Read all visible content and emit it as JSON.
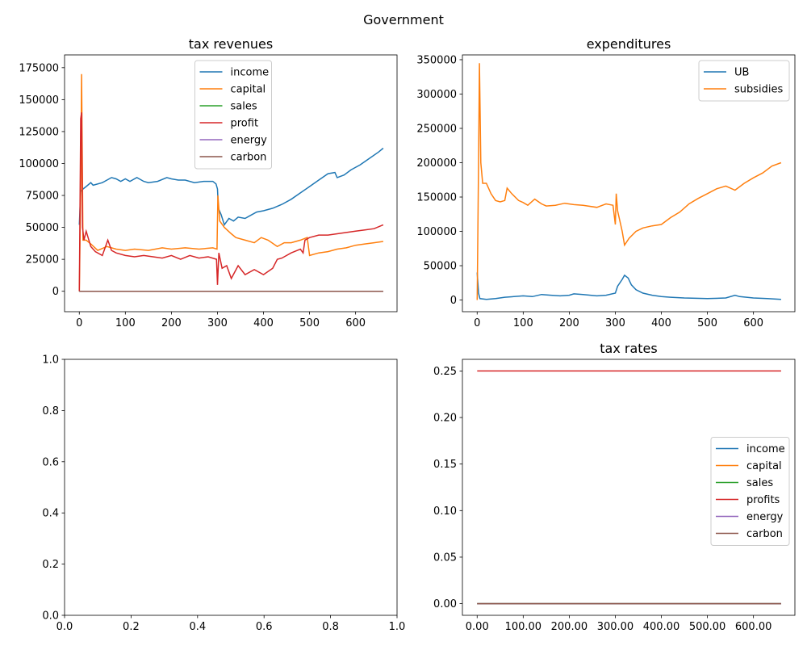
{
  "figure": {
    "title": "Government"
  },
  "chart_data": [
    {
      "id": "tax_revenues",
      "type": "line",
      "title": "tax revenues",
      "xlim": [
        -32,
        690
      ],
      "ylim": [
        -16000,
        185000
      ],
      "xticks": [
        0,
        100,
        200,
        300,
        400,
        500,
        600
      ],
      "yticks": [
        0,
        25000,
        50000,
        75000,
        100000,
        125000,
        150000,
        175000
      ],
      "legend": "top-center",
      "series": [
        {
          "name": "income",
          "color": "#1f77b4",
          "points": [
            [
              0,
              52000
            ],
            [
              3,
              78000
            ],
            [
              8,
              80000
            ],
            [
              15,
              82000
            ],
            [
              25,
              85000
            ],
            [
              30,
              83000
            ],
            [
              50,
              85000
            ],
            [
              70,
              89000
            ],
            [
              80,
              88000
            ],
            [
              90,
              86000
            ],
            [
              100,
              88000
            ],
            [
              110,
              86000
            ],
            [
              125,
              89000
            ],
            [
              140,
              86000
            ],
            [
              150,
              85000
            ],
            [
              170,
              86000
            ],
            [
              190,
              89000
            ],
            [
              200,
              88000
            ],
            [
              215,
              87000
            ],
            [
              230,
              87000
            ],
            [
              250,
              85000
            ],
            [
              270,
              86000
            ],
            [
              290,
              86000
            ],
            [
              297,
              84000
            ],
            [
              300,
              80000
            ],
            [
              302,
              65000
            ],
            [
              308,
              60000
            ],
            [
              315,
              52000
            ],
            [
              325,
              57000
            ],
            [
              335,
              55000
            ],
            [
              345,
              58000
            ],
            [
              360,
              57000
            ],
            [
              370,
              59000
            ],
            [
              385,
              62000
            ],
            [
              400,
              63000
            ],
            [
              420,
              65000
            ],
            [
              440,
              68000
            ],
            [
              460,
              72000
            ],
            [
              480,
              77000
            ],
            [
              500,
              82000
            ],
            [
              520,
              87000
            ],
            [
              540,
              92000
            ],
            [
              555,
              93000
            ],
            [
              560,
              89000
            ],
            [
              575,
              91000
            ],
            [
              590,
              95000
            ],
            [
              610,
              99000
            ],
            [
              630,
              104000
            ],
            [
              650,
              109000
            ],
            [
              660,
              112000
            ]
          ]
        },
        {
          "name": "capital",
          "color": "#ff7f0e",
          "points": [
            [
              0,
              0
            ],
            [
              3,
              80000
            ],
            [
              5,
              170000
            ],
            [
              8,
              40000
            ],
            [
              15,
              40000
            ],
            [
              25,
              37000
            ],
            [
              40,
              32000
            ],
            [
              60,
              35000
            ],
            [
              80,
              33000
            ],
            [
              100,
              32000
            ],
            [
              120,
              33000
            ],
            [
              150,
              32000
            ],
            [
              180,
              34000
            ],
            [
              200,
              33000
            ],
            [
              230,
              34000
            ],
            [
              260,
              33000
            ],
            [
              290,
              34000
            ],
            [
              299,
              33000
            ],
            [
              301,
              75000
            ],
            [
              305,
              55000
            ],
            [
              315,
              50000
            ],
            [
              330,
              45000
            ],
            [
              340,
              42000
            ],
            [
              360,
              40000
            ],
            [
              380,
              38000
            ],
            [
              395,
              42000
            ],
            [
              410,
              40000
            ],
            [
              430,
              35000
            ],
            [
              445,
              38000
            ],
            [
              460,
              38000
            ],
            [
              480,
              40000
            ],
            [
              495,
              42000
            ],
            [
              500,
              28000
            ],
            [
              520,
              30000
            ],
            [
              540,
              31000
            ],
            [
              560,
              33000
            ],
            [
              580,
              34000
            ],
            [
              600,
              36000
            ],
            [
              620,
              37000
            ],
            [
              640,
              38000
            ],
            [
              660,
              39000
            ]
          ]
        },
        {
          "name": "sales",
          "color": "#2ca02c",
          "points": [
            [
              0,
              0
            ],
            [
              660,
              0
            ]
          ]
        },
        {
          "name": "profit",
          "color": "#d62728",
          "points": [
            [
              0,
              0
            ],
            [
              3,
              135000
            ],
            [
              5,
              140000
            ],
            [
              7,
              50000
            ],
            [
              10,
              40000
            ],
            [
              15,
              47000
            ],
            [
              25,
              35000
            ],
            [
              35,
              31000
            ],
            [
              50,
              28000
            ],
            [
              62,
              40000
            ],
            [
              70,
              32000
            ],
            [
              80,
              30000
            ],
            [
              100,
              28000
            ],
            [
              120,
              27000
            ],
            [
              140,
              28000
            ],
            [
              160,
              27000
            ],
            [
              180,
              26000
            ],
            [
              200,
              28000
            ],
            [
              220,
              25000
            ],
            [
              240,
              28000
            ],
            [
              260,
              26000
            ],
            [
              280,
              27000
            ],
            [
              298,
              25000
            ],
            [
              300,
              5000
            ],
            [
              303,
              30000
            ],
            [
              310,
              18000
            ],
            [
              320,
              20000
            ],
            [
              330,
              10000
            ],
            [
              345,
              20000
            ],
            [
              360,
              13000
            ],
            [
              380,
              17000
            ],
            [
              400,
              13000
            ],
            [
              420,
              18000
            ],
            [
              430,
              25000
            ],
            [
              440,
              26000
            ],
            [
              460,
              30000
            ],
            [
              480,
              33000
            ],
            [
              486,
              30000
            ],
            [
              490,
              40000
            ],
            [
              500,
              42000
            ],
            [
              520,
              44000
            ],
            [
              540,
              44000
            ],
            [
              560,
              45000
            ],
            [
              580,
              46000
            ],
            [
              600,
              47000
            ],
            [
              620,
              48000
            ],
            [
              640,
              49000
            ],
            [
              660,
              52000
            ]
          ]
        },
        {
          "name": "energy",
          "color": "#9467bd",
          "points": [
            [
              0,
              0
            ],
            [
              660,
              0
            ]
          ]
        },
        {
          "name": "carbon",
          "color": "#8c564b",
          "points": [
            [
              0,
              0
            ],
            [
              660,
              0
            ]
          ]
        }
      ]
    },
    {
      "id": "expenditures",
      "type": "line",
      "title": "expenditures",
      "xlim": [
        -32,
        690
      ],
      "ylim": [
        -17000,
        357000
      ],
      "xticks": [
        0,
        100,
        200,
        300,
        400,
        500,
        600
      ],
      "yticks": [
        0,
        50000,
        100000,
        150000,
        200000,
        250000,
        300000,
        350000
      ],
      "legend": "top-right",
      "series": [
        {
          "name": "UB",
          "color": "#1f77b4",
          "points": [
            [
              0,
              40000
            ],
            [
              3,
              10000
            ],
            [
              6,
              2000
            ],
            [
              20,
              1000
            ],
            [
              40,
              2000
            ],
            [
              60,
              4000
            ],
            [
              80,
              5000
            ],
            [
              100,
              6000
            ],
            [
              120,
              5000
            ],
            [
              140,
              8000
            ],
            [
              160,
              7000
            ],
            [
              180,
              6000
            ],
            [
              200,
              7000
            ],
            [
              210,
              9000
            ],
            [
              230,
              8000
            ],
            [
              260,
              6000
            ],
            [
              280,
              7000
            ],
            [
              300,
              10000
            ],
            [
              305,
              20000
            ],
            [
              315,
              30000
            ],
            [
              320,
              36000
            ],
            [
              328,
              32000
            ],
            [
              335,
              22000
            ],
            [
              345,
              15000
            ],
            [
              360,
              10000
            ],
            [
              380,
              7000
            ],
            [
              400,
              5000
            ],
            [
              420,
              4000
            ],
            [
              450,
              3000
            ],
            [
              500,
              2000
            ],
            [
              540,
              3000
            ],
            [
              560,
              7000
            ],
            [
              570,
              5000
            ],
            [
              600,
              3000
            ],
            [
              630,
              2000
            ],
            [
              660,
              1000
            ]
          ]
        },
        {
          "name": "subsidies",
          "color": "#ff7f0e",
          "points": [
            [
              0,
              0
            ],
            [
              3,
              200000
            ],
            [
              5,
              345000
            ],
            [
              8,
              200000
            ],
            [
              12,
              170000
            ],
            [
              20,
              170000
            ],
            [
              30,
              155000
            ],
            [
              40,
              145000
            ],
            [
              50,
              143000
            ],
            [
              60,
              145000
            ],
            [
              65,
              163000
            ],
            [
              75,
              155000
            ],
            [
              90,
              145000
            ],
            [
              100,
              142000
            ],
            [
              110,
              138000
            ],
            [
              125,
              147000
            ],
            [
              140,
              140000
            ],
            [
              150,
              137000
            ],
            [
              170,
              138000
            ],
            [
              190,
              141000
            ],
            [
              210,
              139000
            ],
            [
              230,
              138000
            ],
            [
              260,
              135000
            ],
            [
              280,
              140000
            ],
            [
              295,
              138000
            ],
            [
              300,
              110000
            ],
            [
              302,
              155000
            ],
            [
              305,
              130000
            ],
            [
              315,
              100000
            ],
            [
              320,
              80000
            ],
            [
              330,
              90000
            ],
            [
              345,
              100000
            ],
            [
              360,
              105000
            ],
            [
              380,
              108000
            ],
            [
              400,
              110000
            ],
            [
              420,
              120000
            ],
            [
              440,
              128000
            ],
            [
              460,
              140000
            ],
            [
              480,
              148000
            ],
            [
              500,
              155000
            ],
            [
              520,
              162000
            ],
            [
              540,
              166000
            ],
            [
              560,
              160000
            ],
            [
              580,
              170000
            ],
            [
              600,
              178000
            ],
            [
              620,
              185000
            ],
            [
              640,
              195000
            ],
            [
              660,
              200000
            ]
          ]
        }
      ]
    },
    {
      "id": "empty_axes",
      "type": "line",
      "title": "",
      "xlim": [
        0,
        1
      ],
      "ylim": [
        0,
        1
      ],
      "xticks": [
        0,
        0.2,
        0.4,
        0.6,
        0.8,
        1
      ],
      "yticks": [
        0,
        0.2,
        0.4,
        0.6,
        0.8,
        1
      ],
      "tick_format": "one-decimal",
      "legend": "none",
      "series": []
    },
    {
      "id": "tax_rates",
      "type": "line",
      "title": "tax rates",
      "xlim": [
        -32,
        690
      ],
      "ylim": [
        -0.0125,
        0.2625
      ],
      "xticks": [
        0,
        100,
        200,
        300,
        400,
        500,
        600
      ],
      "yticks": [
        0,
        0.05,
        0.1,
        0.15,
        0.2,
        0.25
      ],
      "tick_format": "two-decimal",
      "legend": "center-right",
      "series": [
        {
          "name": "income",
          "color": "#1f77b4",
          "points": [
            [
              0,
              0
            ],
            [
              660,
              0
            ]
          ]
        },
        {
          "name": "capital",
          "color": "#ff7f0e",
          "points": [
            [
              0,
              0
            ],
            [
              660,
              0
            ]
          ]
        },
        {
          "name": "sales",
          "color": "#2ca02c",
          "points": [
            [
              0,
              0
            ],
            [
              660,
              0
            ]
          ]
        },
        {
          "name": "profits",
          "color": "#d62728",
          "points": [
            [
              0,
              0.25
            ],
            [
              660,
              0.25
            ]
          ]
        },
        {
          "name": "energy",
          "color": "#9467bd",
          "points": [
            [
              0,
              0
            ],
            [
              660,
              0
            ]
          ]
        },
        {
          "name": "carbon",
          "color": "#8c564b",
          "points": [
            [
              0,
              0
            ],
            [
              660,
              0
            ]
          ]
        }
      ]
    }
  ]
}
